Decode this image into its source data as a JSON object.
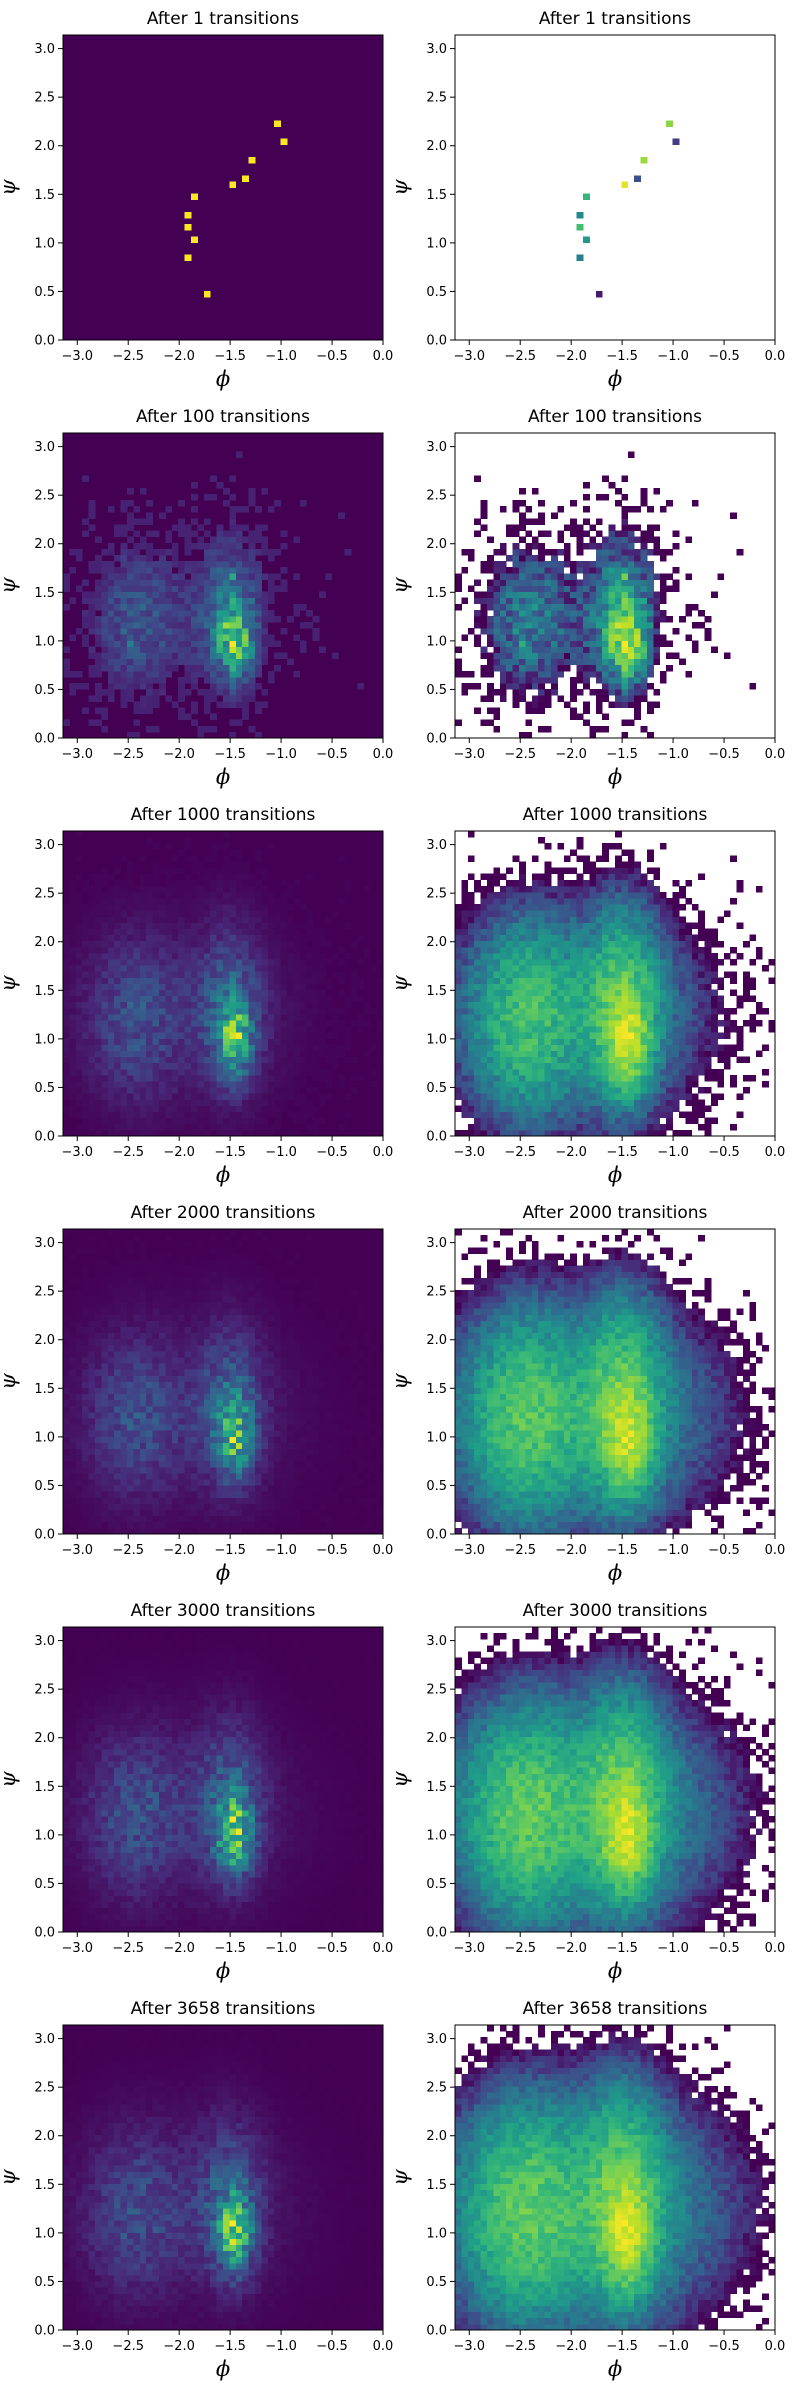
{
  "chart_data": [
    {
      "type": "heatmap",
      "title": "After 1 transitions",
      "xlabel": "ϕ",
      "ylabel": "ψ",
      "xlim": [
        -3.14,
        0
      ],
      "ylim": [
        0,
        3.14
      ],
      "xticks": [
        "−3.0",
        "−2.5",
        "−2.0",
        "−1.5",
        "−1.0",
        "−0.5",
        "0.0"
      ],
      "yticks": [
        "0.0",
        "0.5",
        "1.0",
        "1.5",
        "2.0",
        "2.5",
        "3.0"
      ],
      "scale": "linear",
      "colormap": "viridis",
      "background": "#440154",
      "step": 1,
      "seed": 11,
      "points": [
        [
          -1.85,
          1.47
        ],
        [
          -1.89,
          1.28
        ],
        [
          -1.89,
          1.17
        ],
        [
          -1.88,
          1.02
        ],
        [
          -1.91,
          0.82
        ],
        [
          -1.75,
          0.49
        ],
        [
          -1.5,
          1.6
        ],
        [
          -1.38,
          1.65
        ],
        [
          -1.28,
          1.86
        ],
        [
          -1.02,
          2.23
        ],
        [
          -0.97,
          2.02
        ]
      ]
    },
    {
      "type": "heatmap",
      "title": "After 1 transitions",
      "xlabel": "ϕ",
      "ylabel": "ψ",
      "xlim": [
        -3.14,
        0
      ],
      "ylim": [
        0,
        3.14
      ],
      "xticks": [
        "−3.0",
        "−2.5",
        "−2.0",
        "−1.5",
        "−1.0",
        "−0.5",
        "0.0"
      ],
      "yticks": [
        "0.0",
        "0.5",
        "1.0",
        "1.5",
        "2.0",
        "2.5",
        "3.0"
      ],
      "scale": "log",
      "colormap": "viridis",
      "background": "#ffffff",
      "step": 1,
      "seed": 11,
      "points": [
        [
          -1.85,
          1.47
        ],
        [
          -1.89,
          1.28
        ],
        [
          -1.89,
          1.17
        ],
        [
          -1.88,
          1.02
        ],
        [
          -1.91,
          0.82
        ],
        [
          -1.75,
          0.49
        ],
        [
          -1.5,
          1.6
        ],
        [
          -1.38,
          1.65
        ],
        [
          -1.28,
          1.86
        ],
        [
          -1.02,
          2.23
        ],
        [
          -0.97,
          2.02
        ]
      ]
    },
    {
      "type": "heatmap",
      "title": "After 100 transitions",
      "xlabel": "ϕ",
      "ylabel": "ψ",
      "xlim": [
        -3.14,
        0
      ],
      "ylim": [
        0,
        3.14
      ],
      "xticks": [
        "−3.0",
        "−2.5",
        "−2.0",
        "−1.5",
        "−1.0",
        "−0.5",
        "0.0"
      ],
      "yticks": [
        "0.0",
        "0.5",
        "1.0",
        "1.5",
        "2.0",
        "2.5",
        "3.0"
      ],
      "scale": "linear",
      "colormap": "viridis",
      "background": "#440154",
      "step": 100,
      "seed": 17,
      "points": [
        [
          -1.5,
          1.65
        ],
        [
          -1.45,
          1.08
        ],
        [
          -2.45,
          1.0
        ],
        [
          -1.3,
          0.9
        ]
      ]
    },
    {
      "type": "heatmap",
      "title": "After 100 transitions",
      "xlabel": "ϕ",
      "ylabel": "ψ",
      "xlim": [
        -3.14,
        0
      ],
      "ylim": [
        0,
        3.14
      ],
      "xticks": [
        "−3.0",
        "−2.5",
        "−2.0",
        "−1.5",
        "−1.0",
        "−0.5",
        "0.0"
      ],
      "yticks": [
        "0.0",
        "0.5",
        "1.0",
        "1.5",
        "2.0",
        "2.5",
        "3.0"
      ],
      "scale": "log",
      "colormap": "viridis",
      "background": "#ffffff",
      "step": 100,
      "seed": 17,
      "points": [
        [
          -1.5,
          1.65
        ],
        [
          -1.45,
          1.08
        ],
        [
          -2.45,
          1.0
        ],
        [
          -1.3,
          0.9
        ]
      ]
    },
    {
      "type": "heatmap",
      "title": "After 1000 transitions",
      "xlabel": "ϕ",
      "ylabel": "ψ",
      "xlim": [
        -3.14,
        0
      ],
      "ylim": [
        0,
        3.14
      ],
      "xticks": [
        "−3.0",
        "−2.5",
        "−2.0",
        "−1.5",
        "−1.0",
        "−0.5",
        "0.0"
      ],
      "yticks": [
        "0.0",
        "0.5",
        "1.0",
        "1.5",
        "2.0",
        "2.5",
        "3.0"
      ],
      "scale": "linear",
      "colormap": "viridis",
      "background": "#440154",
      "step": 1000,
      "seed": 23,
      "points": [
        [
          -1.45,
          1.0
        ]
      ]
    },
    {
      "type": "heatmap",
      "title": "After 1000 transitions",
      "xlabel": "ϕ",
      "ylabel": "ψ",
      "xlim": [
        -3.14,
        0
      ],
      "ylim": [
        0,
        3.14
      ],
      "xticks": [
        "−3.0",
        "−2.5",
        "−2.0",
        "−1.5",
        "−1.0",
        "−0.5",
        "0.0"
      ],
      "yticks": [
        "0.0",
        "0.5",
        "1.0",
        "1.5",
        "2.0",
        "2.5",
        "3.0"
      ],
      "scale": "log",
      "colormap": "viridis",
      "background": "#ffffff",
      "step": 1000,
      "seed": 23,
      "points": [
        [
          -1.45,
          1.0
        ]
      ]
    },
    {
      "type": "heatmap",
      "title": "After 2000 transitions",
      "xlabel": "ϕ",
      "ylabel": "ψ",
      "xlim": [
        -3.14,
        0
      ],
      "ylim": [
        0,
        3.14
      ],
      "xticks": [
        "−3.0",
        "−2.5",
        "−2.0",
        "−1.5",
        "−1.0",
        "−0.5",
        "0.0"
      ],
      "yticks": [
        "0.0",
        "0.5",
        "1.0",
        "1.5",
        "2.0",
        "2.5",
        "3.0"
      ],
      "scale": "linear",
      "colormap": "viridis",
      "background": "#440154",
      "step": 2000,
      "seed": 29,
      "points": [
        [
          -1.45,
          1.0
        ]
      ]
    },
    {
      "type": "heatmap",
      "title": "After 2000 transitions",
      "xlabel": "ϕ",
      "ylabel": "ψ",
      "xlim": [
        -3.14,
        0
      ],
      "ylim": [
        0,
        3.14
      ],
      "xticks": [
        "−3.0",
        "−2.5",
        "−2.0",
        "−1.5",
        "−1.0",
        "−0.5",
        "0.0"
      ],
      "yticks": [
        "0.0",
        "0.5",
        "1.0",
        "1.5",
        "2.0",
        "2.5",
        "3.0"
      ],
      "scale": "log",
      "colormap": "viridis",
      "background": "#ffffff",
      "step": 2000,
      "seed": 29,
      "points": [
        [
          -1.45,
          1.0
        ]
      ]
    },
    {
      "type": "heatmap",
      "title": "After 3000 transitions",
      "xlabel": "ϕ",
      "ylabel": "ψ",
      "xlim": [
        -3.14,
        0
      ],
      "ylim": [
        0,
        3.14
      ],
      "xticks": [
        "−3.0",
        "−2.5",
        "−2.0",
        "−1.5",
        "−1.0",
        "−0.5",
        "0.0"
      ],
      "yticks": [
        "0.0",
        "0.5",
        "1.0",
        "1.5",
        "2.0",
        "2.5",
        "3.0"
      ],
      "scale": "linear",
      "colormap": "viridis",
      "background": "#440154",
      "step": 3000,
      "seed": 31,
      "points": [
        [
          -1.45,
          1.0
        ]
      ]
    },
    {
      "type": "heatmap",
      "title": "After 3000 transitions",
      "xlabel": "ϕ",
      "ylabel": "ψ",
      "xlim": [
        -3.14,
        0
      ],
      "ylim": [
        0,
        3.14
      ],
      "xticks": [
        "−3.0",
        "−2.5",
        "−2.0",
        "−1.5",
        "−1.0",
        "−0.5",
        "0.0"
      ],
      "yticks": [
        "0.0",
        "0.5",
        "1.0",
        "1.5",
        "2.0",
        "2.5",
        "3.0"
      ],
      "scale": "log",
      "colormap": "viridis",
      "background": "#ffffff",
      "step": 3000,
      "seed": 31,
      "points": [
        [
          -1.45,
          1.0
        ]
      ]
    },
    {
      "type": "heatmap",
      "title": "After 3658 transitions",
      "xlabel": "ϕ",
      "ylabel": "ψ",
      "xlim": [
        -3.14,
        0
      ],
      "ylim": [
        0,
        3.14
      ],
      "xticks": [
        "−3.0",
        "−2.5",
        "−2.0",
        "−1.5",
        "−1.0",
        "−0.5",
        "0.0"
      ],
      "yticks": [
        "0.0",
        "0.5",
        "1.0",
        "1.5",
        "2.0",
        "2.5",
        "3.0"
      ],
      "scale": "linear",
      "colormap": "viridis",
      "background": "#440154",
      "step": 3658,
      "seed": 37,
      "points": [
        [
          -1.45,
          1.0
        ]
      ]
    },
    {
      "type": "heatmap",
      "title": "After 3658 transitions",
      "xlabel": "ϕ",
      "ylabel": "ψ",
      "xlim": [
        -3.14,
        0
      ],
      "ylim": [
        0,
        3.14
      ],
      "xticks": [
        "−3.0",
        "−2.5",
        "−2.0",
        "−1.5",
        "−1.0",
        "−0.5",
        "0.0"
      ],
      "yticks": [
        "0.0",
        "0.5",
        "1.0",
        "1.5",
        "2.0",
        "2.5",
        "3.0"
      ],
      "scale": "log",
      "colormap": "viridis",
      "background": "#ffffff",
      "step": 3658,
      "seed": 37,
      "points": [
        [
          -1.45,
          1.0
        ]
      ]
    }
  ]
}
